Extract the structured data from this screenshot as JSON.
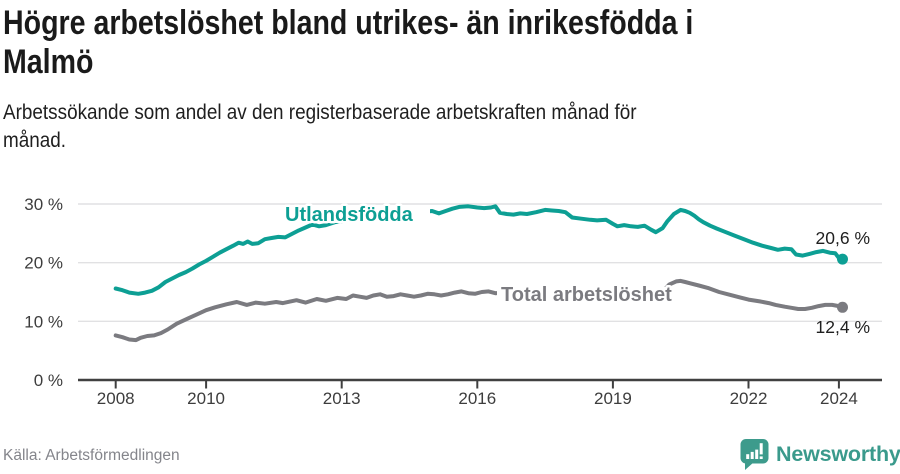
{
  "header": {
    "title_line1": "Högre arbetslöshet bland utrikes- än inrikesfödda i",
    "title_line2": "Malmö",
    "subtitle_line1": "Arbetssökande som andel av den registerbaserade arbetskraften månad för",
    "subtitle_line2": "månad."
  },
  "footer": {
    "source": "Källa: Arbetsförmedlingen",
    "brand": "Newsworthy"
  },
  "colors": {
    "teal": "#0D9F94",
    "gray": "#7B7B80",
    "grid": "#E1E1E3",
    "axis": "#404040",
    "tick_text": "#3D3D3D",
    "annotation": "#1F1F1F",
    "logo_teal": "#3D9B8C"
  },
  "chart_data": {
    "type": "line",
    "title": "Högre arbetslöshet bland utrikes- än inrikesfödda i Malmö",
    "subtitle": "Arbetssökande som andel av den registerbaserade arbetskraften månad för månad.",
    "xlabel": "",
    "ylabel": "",
    "xlim": [
      2007.9,
      2024.35
    ],
    "ylim": [
      0,
      32
    ],
    "grid": "horizontal",
    "x_ticks": [
      2008,
      2010,
      2013,
      2016,
      2019,
      2022,
      2024
    ],
    "y_ticks": [
      {
        "value": 0,
        "label": "0 %"
      },
      {
        "value": 10,
        "label": "10 %"
      },
      {
        "value": 20,
        "label": "20 %"
      },
      {
        "value": 30,
        "label": "30 %"
      }
    ],
    "series": [
      {
        "name": "Utlandsfödda",
        "color": "#0D9F94",
        "end_label": "20,6 %",
        "end_value": 20.6,
        "points": [
          [
            2008.0,
            15.6
          ],
          [
            2008.15,
            15.3
          ],
          [
            2008.3,
            14.9
          ],
          [
            2008.5,
            14.7
          ],
          [
            2008.65,
            14.9
          ],
          [
            2008.8,
            15.2
          ],
          [
            2008.95,
            15.8
          ],
          [
            2009.1,
            16.7
          ],
          [
            2009.25,
            17.3
          ],
          [
            2009.4,
            17.9
          ],
          [
            2009.55,
            18.4
          ],
          [
            2009.7,
            19.0
          ],
          [
            2009.85,
            19.7
          ],
          [
            2010.0,
            20.3
          ],
          [
            2010.15,
            21.0
          ],
          [
            2010.3,
            21.7
          ],
          [
            2010.45,
            22.3
          ],
          [
            2010.6,
            22.9
          ],
          [
            2010.72,
            23.4
          ],
          [
            2010.82,
            23.2
          ],
          [
            2010.92,
            23.6
          ],
          [
            2011.02,
            23.2
          ],
          [
            2011.15,
            23.3
          ],
          [
            2011.3,
            24.0
          ],
          [
            2011.45,
            24.2
          ],
          [
            2011.6,
            24.4
          ],
          [
            2011.75,
            24.3
          ],
          [
            2011.9,
            24.9
          ],
          [
            2012.05,
            25.5
          ],
          [
            2012.2,
            26.0
          ],
          [
            2012.35,
            26.5
          ],
          [
            2012.5,
            26.2
          ],
          [
            2012.65,
            26.4
          ],
          [
            2012.85,
            26.9
          ],
          [
            2013.05,
            27.1
          ],
          [
            2013.25,
            27.3
          ],
          [
            2013.45,
            27.5
          ],
          [
            2013.65,
            27.7
          ],
          [
            2013.85,
            27.4
          ],
          [
            2014.05,
            27.6
          ],
          [
            2014.25,
            27.9
          ],
          [
            2014.45,
            28.2
          ],
          [
            2014.65,
            28.5
          ],
          [
            2014.85,
            28.7
          ],
          [
            2015.0,
            28.8
          ],
          [
            2015.15,
            28.4
          ],
          [
            2015.3,
            28.8
          ],
          [
            2015.45,
            29.2
          ],
          [
            2015.6,
            29.5
          ],
          [
            2015.8,
            29.6
          ],
          [
            2016.0,
            29.4
          ],
          [
            2016.15,
            29.3
          ],
          [
            2016.3,
            29.4
          ],
          [
            2016.4,
            29.6
          ],
          [
            2016.5,
            28.5
          ],
          [
            2016.65,
            28.3
          ],
          [
            2016.8,
            28.2
          ],
          [
            2016.95,
            28.4
          ],
          [
            2017.1,
            28.3
          ],
          [
            2017.3,
            28.6
          ],
          [
            2017.5,
            29.0
          ],
          [
            2017.65,
            28.9
          ],
          [
            2017.8,
            28.8
          ],
          [
            2017.95,
            28.6
          ],
          [
            2018.1,
            27.7
          ],
          [
            2018.3,
            27.5
          ],
          [
            2018.5,
            27.3
          ],
          [
            2018.65,
            27.2
          ],
          [
            2018.85,
            27.3
          ],
          [
            2019.0,
            26.6
          ],
          [
            2019.1,
            26.2
          ],
          [
            2019.25,
            26.4
          ],
          [
            2019.4,
            26.2
          ],
          [
            2019.55,
            26.1
          ],
          [
            2019.7,
            26.3
          ],
          [
            2019.85,
            25.6
          ],
          [
            2019.95,
            25.2
          ],
          [
            2020.1,
            25.9
          ],
          [
            2020.2,
            27.0
          ],
          [
            2020.35,
            28.3
          ],
          [
            2020.5,
            29.0
          ],
          [
            2020.6,
            28.8
          ],
          [
            2020.7,
            28.5
          ],
          [
            2020.8,
            28.0
          ],
          [
            2020.9,
            27.4
          ],
          [
            2021.0,
            26.9
          ],
          [
            2021.15,
            26.3
          ],
          [
            2021.3,
            25.8
          ],
          [
            2021.5,
            25.2
          ],
          [
            2021.7,
            24.6
          ],
          [
            2021.9,
            24.0
          ],
          [
            2022.1,
            23.4
          ],
          [
            2022.3,
            22.9
          ],
          [
            2022.5,
            22.5
          ],
          [
            2022.65,
            22.2
          ],
          [
            2022.8,
            22.4
          ],
          [
            2022.95,
            22.3
          ],
          [
            2023.05,
            21.4
          ],
          [
            2023.2,
            21.2
          ],
          [
            2023.35,
            21.5
          ],
          [
            2023.5,
            21.8
          ],
          [
            2023.65,
            22.0
          ],
          [
            2023.8,
            21.7
          ],
          [
            2023.92,
            21.6
          ],
          [
            2024.0,
            20.8
          ],
          [
            2024.08,
            20.6
          ]
        ]
      },
      {
        "name": "Total arbetslöshet",
        "color": "#7B7B80",
        "end_label": "12,4 %",
        "end_value": 12.4,
        "points": [
          [
            2008.0,
            7.6
          ],
          [
            2008.15,
            7.3
          ],
          [
            2008.3,
            6.9
          ],
          [
            2008.45,
            6.8
          ],
          [
            2008.55,
            7.2
          ],
          [
            2008.7,
            7.5
          ],
          [
            2008.85,
            7.6
          ],
          [
            2009.0,
            8.0
          ],
          [
            2009.15,
            8.6
          ],
          [
            2009.35,
            9.6
          ],
          [
            2009.6,
            10.5
          ],
          [
            2009.8,
            11.2
          ],
          [
            2010.0,
            11.9
          ],
          [
            2010.2,
            12.4
          ],
          [
            2010.45,
            12.9
          ],
          [
            2010.68,
            13.3
          ],
          [
            2010.9,
            12.8
          ],
          [
            2011.1,
            13.2
          ],
          [
            2011.3,
            13.0
          ],
          [
            2011.55,
            13.3
          ],
          [
            2011.7,
            13.1
          ],
          [
            2012.0,
            13.6
          ],
          [
            2012.2,
            13.2
          ],
          [
            2012.45,
            13.8
          ],
          [
            2012.65,
            13.5
          ],
          [
            2012.9,
            14.0
          ],
          [
            2013.1,
            13.8
          ],
          [
            2013.25,
            14.4
          ],
          [
            2013.4,
            14.2
          ],
          [
            2013.55,
            14.0
          ],
          [
            2013.7,
            14.4
          ],
          [
            2013.85,
            14.6
          ],
          [
            2014.0,
            14.2
          ],
          [
            2014.15,
            14.3
          ],
          [
            2014.3,
            14.6
          ],
          [
            2014.45,
            14.4
          ],
          [
            2014.6,
            14.2
          ],
          [
            2014.75,
            14.4
          ],
          [
            2014.9,
            14.7
          ],
          [
            2015.05,
            14.6
          ],
          [
            2015.2,
            14.4
          ],
          [
            2015.35,
            14.6
          ],
          [
            2015.5,
            14.9
          ],
          [
            2015.65,
            15.1
          ],
          [
            2015.8,
            14.8
          ],
          [
            2015.95,
            14.7
          ],
          [
            2016.1,
            15.0
          ],
          [
            2016.25,
            15.1
          ],
          [
            2016.4,
            14.8
          ],
          [
            2016.55,
            14.9
          ],
          [
            2016.7,
            15.0
          ],
          [
            2016.9,
            15.2
          ],
          [
            2017.1,
            15.3
          ],
          [
            2017.3,
            15.2
          ],
          [
            2017.5,
            15.3
          ],
          [
            2017.7,
            15.2
          ],
          [
            2017.9,
            15.0
          ],
          [
            2018.1,
            15.1
          ],
          [
            2018.3,
            15.0
          ],
          [
            2018.5,
            14.8
          ],
          [
            2018.7,
            14.6
          ],
          [
            2018.9,
            14.4
          ],
          [
            2019.1,
            14.2
          ],
          [
            2019.3,
            14.2
          ],
          [
            2019.5,
            14.1
          ],
          [
            2019.7,
            14.0
          ],
          [
            2019.85,
            13.9
          ],
          [
            2019.98,
            14.1
          ],
          [
            2020.12,
            15.2
          ],
          [
            2020.25,
            16.3
          ],
          [
            2020.4,
            16.8
          ],
          [
            2020.5,
            16.9
          ],
          [
            2020.6,
            16.7
          ],
          [
            2020.7,
            16.5
          ],
          [
            2020.9,
            16.1
          ],
          [
            2021.1,
            15.7
          ],
          [
            2021.35,
            15.0
          ],
          [
            2021.6,
            14.5
          ],
          [
            2021.8,
            14.1
          ],
          [
            2022.0,
            13.7
          ],
          [
            2022.25,
            13.4
          ],
          [
            2022.45,
            13.1
          ],
          [
            2022.6,
            12.8
          ],
          [
            2022.8,
            12.5
          ],
          [
            2022.95,
            12.3
          ],
          [
            2023.1,
            12.1
          ],
          [
            2023.25,
            12.1
          ],
          [
            2023.4,
            12.3
          ],
          [
            2023.55,
            12.6
          ],
          [
            2023.7,
            12.8
          ],
          [
            2023.85,
            12.8
          ],
          [
            2024.0,
            12.6
          ],
          [
            2024.08,
            12.4
          ]
        ]
      }
    ]
  }
}
